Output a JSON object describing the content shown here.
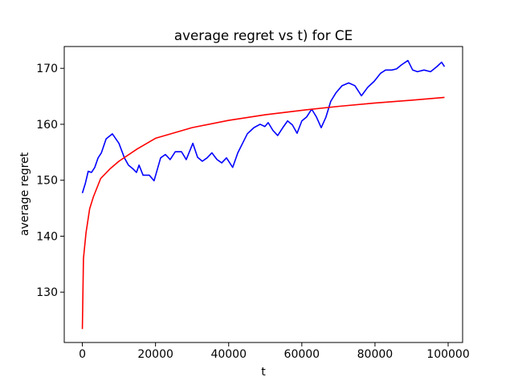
{
  "chart_data": {
    "type": "line",
    "title": "average regret vs t) for CE",
    "xlabel": "t",
    "ylabel": "average regret",
    "xlim": [
      -4950,
      103950
    ],
    "ylim": [
      121.0,
      173.9
    ],
    "xticks": [
      0,
      20000,
      40000,
      60000,
      80000,
      100000
    ],
    "yticks": [
      130,
      140,
      150,
      160,
      170
    ],
    "series": [
      {
        "color": "#0000ff",
        "x": [
          0,
          800,
          1600,
          2500,
          3400,
          4300,
          5200,
          6500,
          8200,
          10000,
          11500,
          12600,
          13900,
          14800,
          15500,
          16600,
          18300,
          19600,
          21400,
          22700,
          24000,
          25400,
          27100,
          28400,
          30200,
          31500,
          32800,
          34100,
          35400,
          36800,
          38100,
          39400,
          41100,
          42500,
          43800,
          45100,
          46900,
          48600,
          49900,
          50800,
          52100,
          53400,
          54800,
          56100,
          57400,
          58700,
          60000,
          61300,
          62700,
          64000,
          65300,
          66600,
          67900,
          69300,
          71000,
          72800,
          74500,
          76300,
          78000,
          79800,
          81500,
          82900,
          84600,
          85900,
          87200,
          89000,
          90300,
          91600,
          93400,
          95200,
          96900,
          98200,
          99000
        ],
        "values": [
          147.7,
          149.4,
          151.6,
          151.4,
          152.3,
          154.0,
          154.9,
          157.4,
          158.3,
          156.6,
          154.0,
          152.7,
          152.0,
          151.4,
          152.7,
          150.9,
          150.9,
          149.9,
          154.0,
          154.6,
          153.7,
          155.1,
          155.1,
          153.7,
          156.6,
          154.1,
          153.4,
          154.0,
          154.9,
          153.7,
          153.1,
          154.0,
          152.3,
          154.9,
          156.6,
          158.3,
          159.4,
          160.0,
          159.6,
          160.3,
          158.9,
          158.0,
          159.4,
          160.6,
          159.9,
          158.4,
          160.6,
          161.3,
          162.7,
          161.3,
          159.4,
          161.3,
          164.1,
          165.6,
          166.9,
          167.4,
          166.9,
          165.1,
          166.6,
          167.7,
          169.1,
          169.7,
          169.7,
          169.9,
          170.6,
          171.4,
          169.7,
          169.4,
          169.7,
          169.4,
          170.3,
          171.1,
          170.3
        ]
      },
      {
        "color": "#ff0000",
        "x": [
          0,
          300,
          1000,
          2000,
          3000,
          5000,
          7500,
          10000,
          15000,
          20000,
          30000,
          40000,
          50000,
          60000,
          70000,
          80000,
          90000,
          99000
        ],
        "values": [
          123.4,
          136.0,
          140.6,
          144.9,
          147.0,
          150.3,
          152.0,
          153.4,
          155.6,
          157.5,
          159.4,
          160.7,
          161.7,
          162.5,
          163.2,
          163.8,
          164.3,
          164.8
        ]
      }
    ]
  }
}
